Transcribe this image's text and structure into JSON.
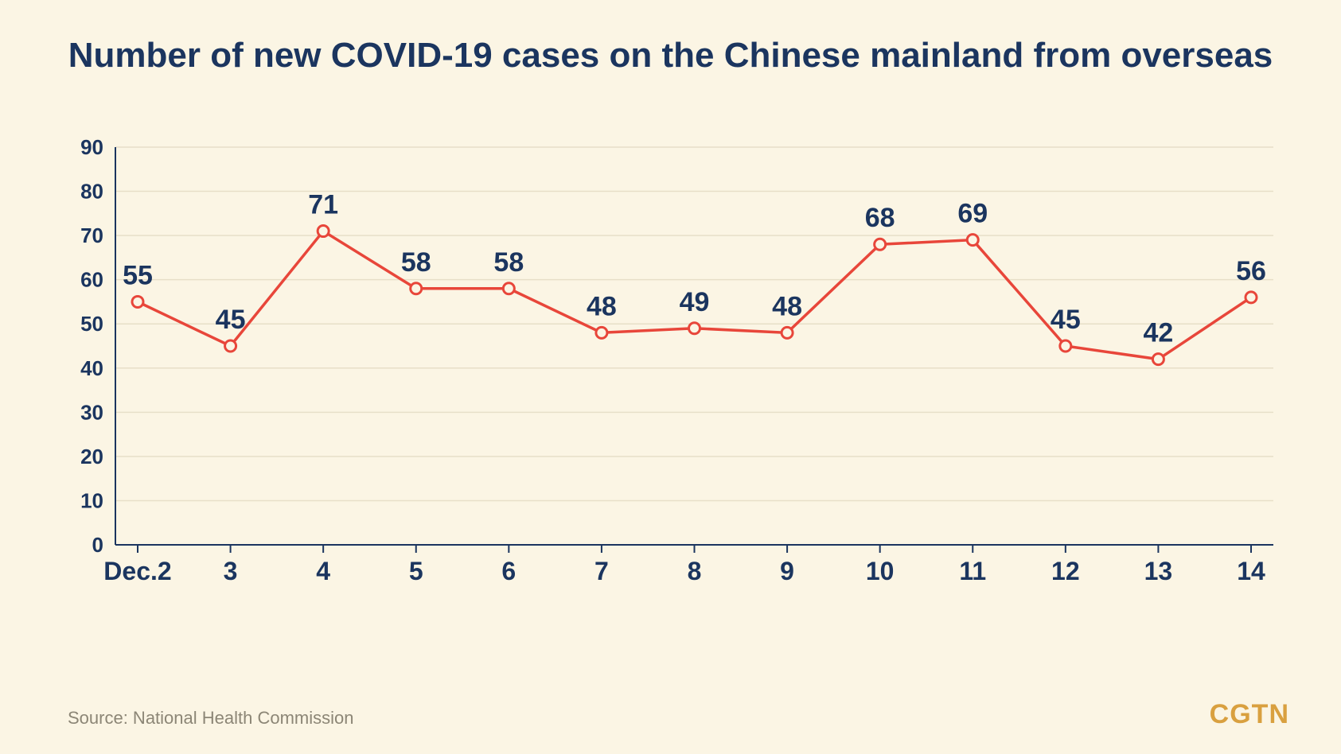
{
  "title": "Number of new COVID-19 cases on the Chinese mainland from overseas",
  "source": "Source: National Health Commission",
  "logo": "CGTN",
  "chart": {
    "type": "line",
    "background_color": "#fbf5e4",
    "grid_color": "#e7dfc8",
    "axis_color": "#1b355f",
    "text_color": "#1b355f",
    "title_fontsize": 44,
    "label_fontsize": 34,
    "axis_fontsize": 26,
    "x_axis_fontsize": 32,
    "ylim": [
      0,
      90
    ],
    "ytick_step": 10,
    "x_labels": [
      "Dec.2",
      "3",
      "4",
      "5",
      "6",
      "7",
      "8",
      "9",
      "10",
      "11",
      "12",
      "13",
      "14"
    ],
    "values": [
      55,
      45,
      71,
      58,
      58,
      48,
      49,
      48,
      68,
      69,
      45,
      42,
      56
    ],
    "line_color": "#e8463a",
    "line_width": 3.5,
    "marker_fill": "#fbf5e4",
    "marker_stroke": "#e8463a",
    "marker_radius": 7,
    "marker_stroke_width": 3
  }
}
